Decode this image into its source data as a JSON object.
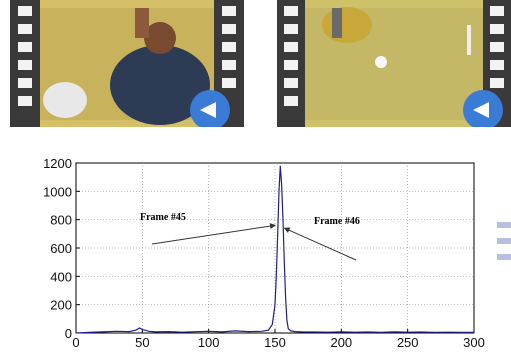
{
  "chart_data": {
    "type": "line",
    "title": "",
    "xlabel": "",
    "ylabel": "",
    "xlim": [
      0,
      300
    ],
    "ylim": [
      0,
      1200
    ],
    "x_ticks": [
      0,
      50,
      100,
      150,
      200,
      250,
      300
    ],
    "y_ticks": [
      0,
      200,
      400,
      600,
      800,
      1000,
      1200
    ],
    "grid": true,
    "series": [
      {
        "color": "#1f1f8f",
        "x": [
          0,
          10,
          20,
          30,
          40,
          45,
          48,
          50,
          55,
          60,
          70,
          80,
          90,
          100,
          110,
          120,
          130,
          140,
          145,
          148,
          150,
          151,
          152,
          153,
          154,
          155,
          156,
          157,
          158,
          159,
          160,
          162,
          165,
          170,
          180,
          190,
          200,
          210,
          220,
          230,
          240,
          250,
          260,
          270,
          280,
          290,
          300
        ],
        "y": [
          0,
          4,
          8,
          12,
          10,
          20,
          35,
          25,
          12,
          8,
          10,
          6,
          9,
          12,
          8,
          15,
          10,
          12,
          20,
          60,
          200,
          400,
          700,
          1000,
          1180,
          1050,
          800,
          500,
          250,
          90,
          30,
          15,
          10,
          8,
          7,
          6,
          8,
          6,
          7,
          5,
          8,
          6,
          7,
          5,
          6,
          5,
          4
        ]
      }
    ],
    "annotations": [
      {
        "text": "Frame #45",
        "target": [
          153,
          760
        ]
      },
      {
        "text": "Frame #46",
        "target": [
          155,
          740
        ]
      }
    ]
  }
}
